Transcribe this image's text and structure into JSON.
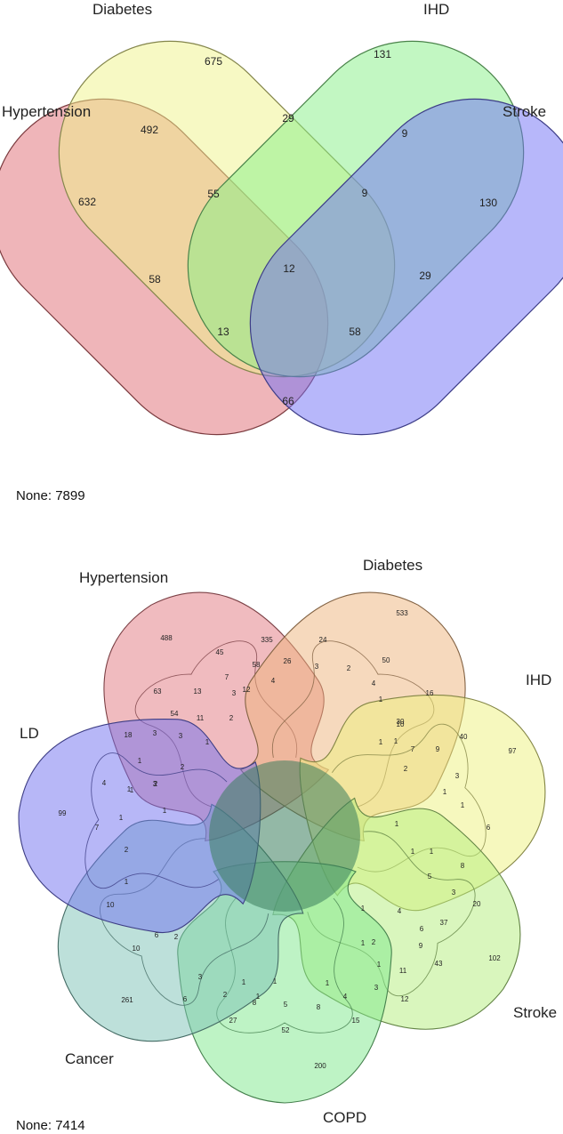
{
  "chart_data": [
    {
      "type": "venn",
      "sets": [
        {
          "name": "Hypertension",
          "color": "#e06b73"
        },
        {
          "name": "Diabetes",
          "color": "#f0f48a"
        },
        {
          "name": "IHD",
          "color": "#86ef86"
        },
        {
          "name": "Stroke",
          "color": "#6f6ff5"
        }
      ],
      "regions": [
        {
          "sets": [
            "Diabetes"
          ],
          "value": 675
        },
        {
          "sets": [
            "IHD"
          ],
          "value": 131
        },
        {
          "sets": [
            "Hypertension",
            "Diabetes"
          ],
          "value": 492
        },
        {
          "sets": [
            "Diabetes",
            "IHD"
          ],
          "value": 29
        },
        {
          "sets": [
            "IHD",
            "Stroke"
          ],
          "value": 9
        },
        {
          "sets": [
            "Stroke"
          ],
          "value": 130
        },
        {
          "sets": [
            "Hypertension"
          ],
          "value": 632
        },
        {
          "sets": [
            "Hypertension",
            "Diabetes",
            "IHD"
          ],
          "value": 55
        },
        {
          "sets": [
            "Diabetes",
            "IHD",
            "Stroke"
          ],
          "value": 9
        },
        {
          "sets": [
            "Hypertension",
            "IHD"
          ],
          "value": 58
        },
        {
          "sets": [
            "Hypertension",
            "Diabetes",
            "IHD",
            "Stroke"
          ],
          "value": 12
        },
        {
          "sets": [
            "Diabetes",
            "Stroke"
          ],
          "value": 29
        },
        {
          "sets": [
            "Hypertension",
            "IHD",
            "Stroke"
          ],
          "value": 13
        },
        {
          "sets": [
            "Hypertension",
            "Diabetes",
            "Stroke"
          ],
          "value": 58
        },
        {
          "sets": [
            "Hypertension",
            "Stroke"
          ],
          "value": 66
        }
      ],
      "none_label": "None: 7899"
    },
    {
      "type": "venn",
      "sets": [
        {
          "name": "Hypertension",
          "color": "#e2777f"
        },
        {
          "name": "Diabetes",
          "color": "#eeb47c"
        },
        {
          "name": "IHD",
          "color": "#eef27e"
        },
        {
          "name": "Stroke",
          "color": "#b3ee7c"
        },
        {
          "name": "COPD",
          "color": "#7ee88c"
        },
        {
          "name": "Cancer",
          "color": "#7cc2b5"
        },
        {
          "name": "LD",
          "color": "#6f6ff0"
        }
      ],
      "visible_counts": [
        488,
        335,
        24,
        533,
        45,
        7,
        58,
        26,
        3,
        2,
        50,
        16,
        63,
        13,
        12,
        4,
        4,
        1,
        30,
        40,
        97,
        54,
        11,
        2,
        3,
        10,
        7,
        9,
        18,
        3,
        3,
        1,
        1,
        1,
        2,
        1,
        2,
        1,
        2,
        3,
        4,
        3,
        1,
        1,
        99,
        1,
        1,
        1,
        6,
        7,
        2,
        1,
        1,
        1,
        8,
        1,
        5,
        3,
        20,
        10,
        1,
        4,
        6,
        37,
        6,
        2,
        1,
        2,
        9,
        102,
        43,
        10,
        1,
        11,
        3,
        1,
        1,
        4,
        3,
        12,
        261,
        6,
        2,
        1,
        1,
        27,
        8,
        5,
        8,
        15,
        52,
        200
      ],
      "none_label": "None: 7414"
    }
  ]
}
